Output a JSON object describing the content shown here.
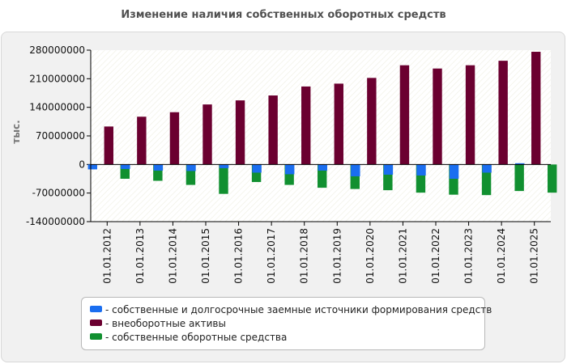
{
  "chart_data": {
    "type": "bar",
    "title": "Изменение наличия собственных оборотных средств",
    "ylabel": "тыс.",
    "ylim": [
      -140000000,
      280000000
    ],
    "yticks": [
      280000000,
      210000000,
      140000000,
      70000000,
      0,
      -70000000,
      -140000000
    ],
    "ytick_labels": [
      "280000000",
      "210000000",
      "140000000",
      "70000000",
      "0",
      "-70000000",
      "-140000000"
    ],
    "categories": [
      "01.01.2012",
      "01.01.2013",
      "01.01.2014",
      "01.01.2015",
      "01.01.2016",
      "01.01.2017",
      "01.01.2018",
      "01.01.2019",
      "01.01.2020",
      "01.01.2021",
      "01.01.2022",
      "01.01.2023",
      "01.01.2024",
      "01.01.2025"
    ],
    "series": [
      {
        "name": "собственные и долгосрочные заемные источники формирования средств",
        "color": "#1a6ef0",
        "values": [
          -12000000,
          -11000000,
          -15000000,
          -16000000,
          -9000000,
          -20000000,
          -24000000,
          -15000000,
          -29000000,
          -25000000,
          -27000000,
          -35000000,
          -20000000,
          3000000
        ]
      },
      {
        "name": "внеоборотные активы",
        "color": "#6b0030",
        "values": [
          93000000,
          117000000,
          128000000,
          147000000,
          157000000,
          169000000,
          191000000,
          198000000,
          212000000,
          243000000,
          235000000,
          243000000,
          254000000,
          276000000
        ]
      },
      {
        "name": "собственные оборотные средства",
        "color": "#119030",
        "values": [
          -35000000,
          -40000000,
          -50000000,
          -72000000,
          -43000000,
          -50000000,
          -57000000,
          -60000000,
          -63000000,
          -69000000,
          -74000000,
          -75000000,
          -65000000,
          -69000000
        ]
      }
    ],
    "legend_position": "bottom",
    "grid": false
  }
}
